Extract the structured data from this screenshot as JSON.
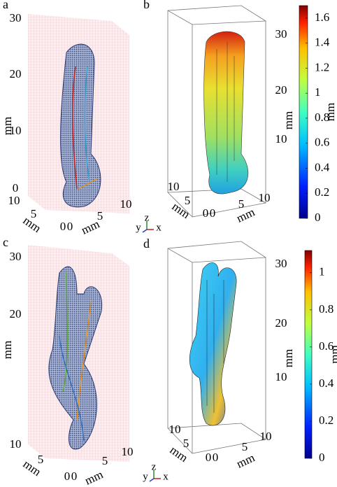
{
  "panels": [
    {
      "label": "a",
      "z_ticks": [
        30,
        20,
        10,
        0
      ],
      "z_label": "mm",
      "y_ticks": [
        10,
        5,
        0
      ],
      "y_label": "mm",
      "x_ticks": [
        0,
        5,
        10
      ],
      "x_label": "mm",
      "triad": [
        "y",
        "z",
        "x"
      ]
    },
    {
      "label": "b",
      "z_ticks": [
        30,
        20,
        10
      ],
      "z_label": "mm",
      "y_ticks": [
        10,
        5,
        0
      ],
      "y_label": "mm",
      "x_ticks": [
        0,
        5,
        10
      ],
      "x_label": "mm",
      "colorbar": {
        "ticks": [
          0,
          0.2,
          0.4,
          0.6,
          0.8,
          1,
          1.2,
          1.4,
          1.6
        ],
        "range": [
          0,
          1.7
        ],
        "label": "mm"
      }
    },
    {
      "label": "c",
      "z_ticks": [
        30,
        20
      ],
      "z_label": "mm",
      "y_ticks": [
        10,
        5,
        0
      ],
      "y_label": "mm",
      "x_ticks": [
        0,
        5,
        10
      ],
      "x_label": "mm",
      "triad": [
        "y",
        "z",
        "x"
      ]
    },
    {
      "label": "d",
      "z_ticks": [
        30,
        20,
        10
      ],
      "z_label": "mm",
      "y_ticks": [
        10,
        5,
        0
      ],
      "y_label": "mm",
      "x_ticks": [
        0,
        5,
        10
      ],
      "x_label": "mm",
      "colorbar": {
        "ticks": [
          0,
          0.2,
          0.4,
          0.6,
          0.8,
          1
        ],
        "range": [
          0,
          1.12
        ],
        "label": "mm"
      }
    }
  ]
}
